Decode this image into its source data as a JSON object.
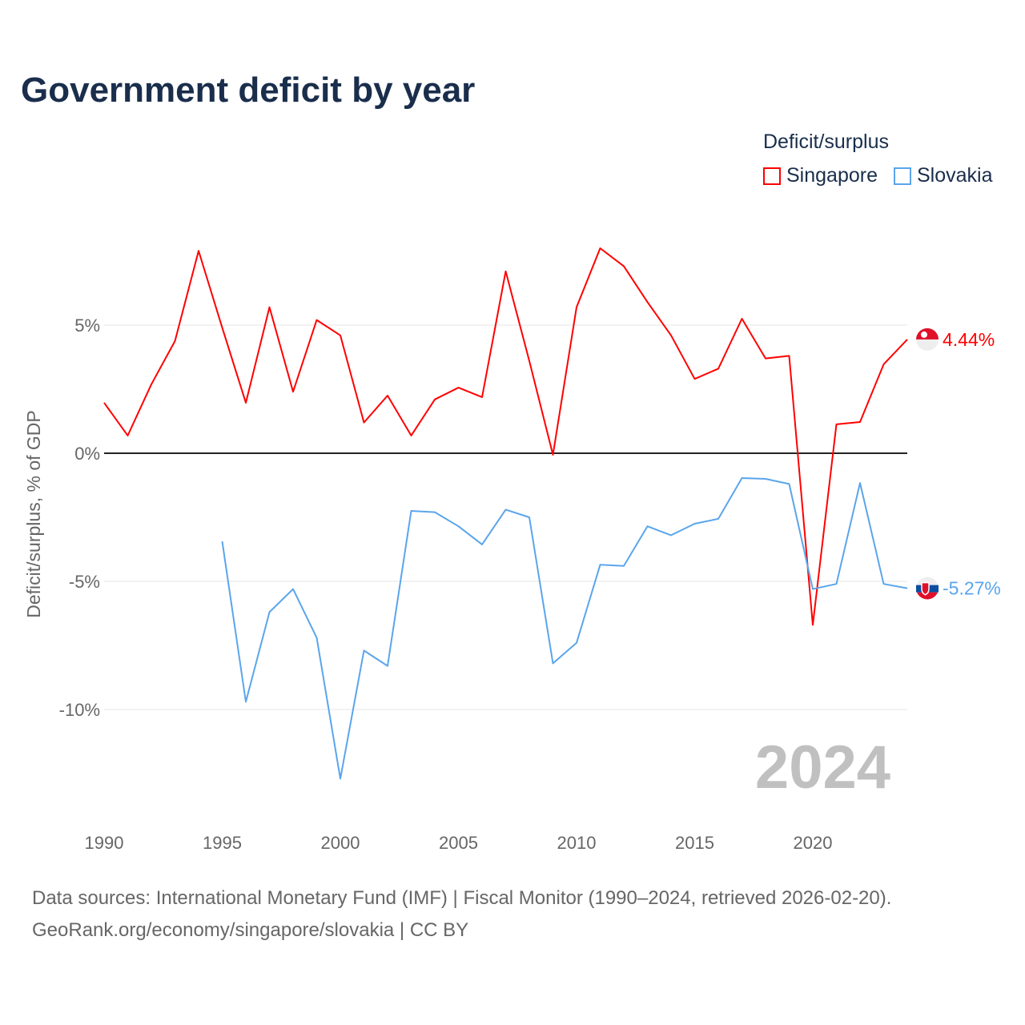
{
  "chart_data": {
    "type": "line",
    "title": "Government deficit by year",
    "ylabel": "Deficit/surplus, % of GDP",
    "xlabel": "",
    "legend_title": "Deficit/surplus",
    "legend_position": "top-right",
    "xlim": [
      1990,
      2024
    ],
    "ylim": [
      -14,
      10
    ],
    "x_ticks": [
      1990,
      1995,
      2000,
      2005,
      2010,
      2015,
      2020
    ],
    "x_tick_labels": [
      "1990",
      "1995",
      "2000",
      "2005",
      "2010",
      "2015",
      "2020"
    ],
    "y_ticks": [
      5,
      0,
      -5,
      -10
    ],
    "y_tick_labels": [
      "5%",
      "0%",
      "-5%",
      "-10%"
    ],
    "year_watermark": "2024",
    "series": [
      {
        "name": "Singapore",
        "color": "#ff0000",
        "end_label": "4.44%",
        "x": [
          1990,
          1991,
          1992,
          1993,
          1994,
          1995,
          1996,
          1997,
          1998,
          1999,
          2000,
          2001,
          2002,
          2003,
          2004,
          2005,
          2006,
          2007,
          2008,
          2009,
          2010,
          2011,
          2012,
          2013,
          2014,
          2015,
          2016,
          2017,
          2018,
          2019,
          2020,
          2021,
          2022,
          2023,
          2024
        ],
        "values": [
          1.97,
          0.69,
          2.69,
          4.38,
          7.9,
          4.9,
          1.97,
          5.7,
          2.4,
          5.2,
          4.6,
          1.2,
          2.25,
          0.69,
          2.1,
          2.56,
          2.19,
          7.1,
          3.6,
          -0.06,
          5.7,
          8.0,
          7.3,
          5.9,
          4.6,
          2.9,
          3.3,
          5.25,
          3.7,
          3.8,
          -6.7,
          1.13,
          1.22,
          3.47,
          4.44
        ]
      },
      {
        "name": "Slovakia",
        "color": "#5aa5ec",
        "end_label": "-5.27%",
        "x": [
          1995,
          1996,
          1997,
          1998,
          1999,
          2000,
          2001,
          2002,
          2003,
          2004,
          2005,
          2006,
          2007,
          2008,
          2009,
          2010,
          2011,
          2012,
          2013,
          2014,
          2015,
          2016,
          2017,
          2018,
          2019,
          2020,
          2021,
          2022,
          2023,
          2024
        ],
        "values": [
          -3.44,
          -9.7,
          -6.2,
          -5.3,
          -7.2,
          -12.7,
          -7.7,
          -8.3,
          -2.25,
          -2.3,
          -2.85,
          -3.56,
          -2.2,
          -2.5,
          -8.2,
          -7.4,
          -4.35,
          -4.4,
          -2.85,
          -3.2,
          -2.75,
          -2.56,
          -0.97,
          -1.0,
          -1.2,
          -5.3,
          -5.1,
          -1.16,
          -5.1,
          -5.27
        ]
      }
    ]
  },
  "footer": {
    "line1": "Data sources: International Monetary Fund (IMF) | Fiscal Monitor (1990–2024, retrieved 2026-02-20).",
    "line2": "GeoRank.org/economy/singapore/slovakia | CC BY"
  }
}
